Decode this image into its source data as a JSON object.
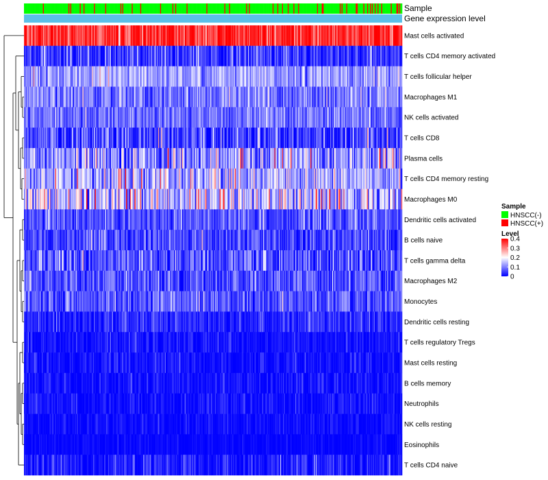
{
  "chart_data": {
    "type": "heatmap",
    "title": "",
    "annotations": {
      "sample_label": "Sample",
      "gene_expression_label": "Gene expression level",
      "sample_groups": [
        "HNSCC(-)",
        "HNSCC(+)"
      ],
      "sample_colors": {
        "HNSCC(-)": "#00ff00",
        "HNSCC(+)": "#ff0000"
      },
      "gene_expression_color": "#5bbfe8"
    },
    "rows": [
      {
        "label": "Mast cells activated",
        "mean": 0.36,
        "spread": 0.05
      },
      {
        "label": "T cells CD4 memory activated",
        "mean": 0.04,
        "spread": 0.05
      },
      {
        "label": "T cells follicular helper",
        "mean": 0.12,
        "spread": 0.04
      },
      {
        "label": "Macrophages M1",
        "mean": 0.09,
        "spread": 0.04
      },
      {
        "label": "NK cells activated",
        "mean": 0.08,
        "spread": 0.04
      },
      {
        "label": "T cells CD8",
        "mean": 0.05,
        "spread": 0.06
      },
      {
        "label": "Plasma cells",
        "mean": 0.11,
        "spread": 0.07
      },
      {
        "label": "T cells CD4 memory resting",
        "mean": 0.13,
        "spread": 0.06
      },
      {
        "label": "Macrophages M0",
        "mean": 0.15,
        "spread": 0.08
      },
      {
        "label": "Dendritic cells activated",
        "mean": 0.06,
        "spread": 0.04
      },
      {
        "label": "B cells naive",
        "mean": 0.05,
        "spread": 0.04
      },
      {
        "label": "T cells gamma delta",
        "mean": 0.06,
        "spread": 0.05
      },
      {
        "label": "Macrophages M2",
        "mean": 0.06,
        "spread": 0.04
      },
      {
        "label": "Monocytes",
        "mean": 0.06,
        "spread": 0.04
      },
      {
        "label": "Dendritic cells resting",
        "mean": 0.03,
        "spread": 0.03
      },
      {
        "label": "T cells regulatory  Tregs",
        "mean": 0.01,
        "spread": 0.02
      },
      {
        "label": "Mast cells resting",
        "mean": 0.01,
        "spread": 0.02
      },
      {
        "label": "B cells memory",
        "mean": 0.01,
        "spread": 0.02
      },
      {
        "label": "Neutrophils",
        "mean": 0.01,
        "spread": 0.02
      },
      {
        "label": "NK cells resting",
        "mean": 0.005,
        "spread": 0.015
      },
      {
        "label": "Eosinophils",
        "mean": 0.003,
        "spread": 0.01
      },
      {
        "label": "T cells CD4 naive",
        "mean": 0.02,
        "spread": 0.03
      }
    ],
    "n_samples": 400,
    "color_scale": {
      "title": "Level",
      "ticks": [
        0,
        0.1,
        0.2,
        0.3,
        0.4
      ],
      "tick_labels": [
        "0",
        "0.1",
        "0.2",
        "0.3",
        "0.4"
      ],
      "stops": [
        {
          "value": 0,
          "color": "#0000ff"
        },
        {
          "value": 0.2,
          "color": "#ffffff"
        },
        {
          "value": 0.4,
          "color": "#ff0000"
        }
      ]
    },
    "legend": {
      "sample_title": "Sample",
      "level_title": "Level",
      "placement": "right"
    },
    "dendrogram": "rows"
  }
}
